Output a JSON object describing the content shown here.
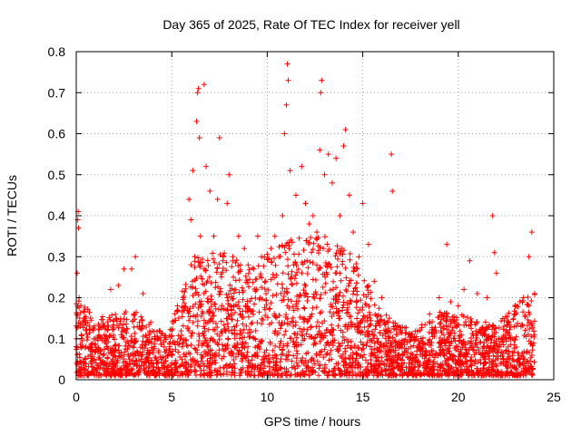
{
  "chart_data": {
    "type": "scatter",
    "title": "Day 365 of 2025, Rate Of TEC Index for receiver yell",
    "xlabel": "GPS time / hours",
    "ylabel": "ROTI / TECUs",
    "xlim": [
      0,
      25
    ],
    "ylim": [
      0,
      0.8
    ],
    "xticks": [
      "0",
      "5",
      "10",
      "15",
      "20",
      "25"
    ],
    "yticks": [
      "0",
      "0.1",
      "0.2",
      "0.3",
      "0.4",
      "0.5",
      "0.6",
      "0.7",
      "0.8"
    ],
    "grid": true,
    "marker": "plus",
    "color": "#ff0000",
    "series": [
      {
        "points": [
          [
            0.05,
            0.26
          ],
          [
            0.08,
            0.39
          ],
          [
            0.1,
            0.41
          ],
          [
            0.12,
            0.37
          ],
          [
            0.15,
            0.2
          ],
          [
            0.18,
            0.15
          ],
          [
            0.3,
            0.1
          ],
          [
            0.5,
            0.12
          ],
          [
            0.7,
            0.08
          ],
          [
            1.0,
            0.1
          ],
          [
            1.5,
            0.13
          ],
          [
            1.8,
            0.22
          ],
          [
            2.2,
            0.23
          ],
          [
            2.5,
            0.27
          ],
          [
            2.9,
            0.27
          ],
          [
            3.1,
            0.3
          ],
          [
            3.5,
            0.21
          ],
          [
            3.9,
            0.14
          ],
          [
            4.3,
            0.1
          ],
          [
            4.6,
            0.08
          ],
          [
            5.0,
            0.12
          ],
          [
            5.3,
            0.18
          ],
          [
            5.6,
            0.2
          ],
          [
            5.9,
            0.44
          ],
          [
            6.0,
            0.39
          ],
          [
            6.1,
            0.51
          ],
          [
            6.2,
            0.3
          ],
          [
            6.3,
            0.63
          ],
          [
            6.35,
            0.7
          ],
          [
            6.4,
            0.71
          ],
          [
            6.45,
            0.59
          ],
          [
            6.5,
            0.35
          ],
          [
            6.7,
            0.72
          ],
          [
            6.8,
            0.52
          ],
          [
            7.0,
            0.46
          ],
          [
            7.2,
            0.35
          ],
          [
            7.4,
            0.44
          ],
          [
            7.5,
            0.59
          ],
          [
            7.7,
            0.3
          ],
          [
            7.9,
            0.43
          ],
          [
            8.0,
            0.5
          ],
          [
            8.2,
            0.3
          ],
          [
            8.5,
            0.35
          ],
          [
            8.8,
            0.32
          ],
          [
            9.0,
            0.28
          ],
          [
            9.3,
            0.27
          ],
          [
            9.5,
            0.35
          ],
          [
            9.7,
            0.3
          ],
          [
            9.9,
            0.24
          ],
          [
            10.2,
            0.32
          ],
          [
            10.4,
            0.35
          ],
          [
            10.6,
            0.3
          ],
          [
            10.8,
            0.4
          ],
          [
            10.9,
            0.6
          ],
          [
            11.0,
            0.67
          ],
          [
            11.05,
            0.77
          ],
          [
            11.1,
            0.73
          ],
          [
            11.2,
            0.51
          ],
          [
            11.5,
            0.45
          ],
          [
            11.8,
            0.52
          ],
          [
            12.0,
            0.43
          ],
          [
            12.2,
            0.38
          ],
          [
            12.4,
            0.4
          ],
          [
            12.6,
            0.36
          ],
          [
            12.75,
            0.56
          ],
          [
            12.8,
            0.7
          ],
          [
            12.85,
            0.73
          ],
          [
            13.0,
            0.5
          ],
          [
            13.2,
            0.55
          ],
          [
            13.4,
            0.48
          ],
          [
            13.6,
            0.54
          ],
          [
            13.8,
            0.4
          ],
          [
            14.0,
            0.57
          ],
          [
            14.1,
            0.61
          ],
          [
            14.3,
            0.45
          ],
          [
            14.5,
            0.36
          ],
          [
            14.8,
            0.3
          ],
          [
            15.0,
            0.43
          ],
          [
            15.3,
            0.33
          ],
          [
            15.6,
            0.24
          ],
          [
            16.0,
            0.2
          ],
          [
            16.4,
            0.15
          ],
          [
            16.5,
            0.55
          ],
          [
            16.55,
            0.46
          ],
          [
            17.0,
            0.12
          ],
          [
            17.5,
            0.08
          ],
          [
            18.0,
            0.12
          ],
          [
            18.5,
            0.16
          ],
          [
            19.0,
            0.2
          ],
          [
            19.4,
            0.33
          ],
          [
            19.6,
            0.19
          ],
          [
            20.0,
            0.18
          ],
          [
            20.3,
            0.22
          ],
          [
            20.6,
            0.29
          ],
          [
            21.0,
            0.21
          ],
          [
            21.5,
            0.2
          ],
          [
            21.8,
            0.4
          ],
          [
            21.9,
            0.31
          ],
          [
            22.0,
            0.26
          ],
          [
            22.5,
            0.12
          ],
          [
            23.0,
            0.16
          ],
          [
            23.4,
            0.2
          ],
          [
            23.7,
            0.3
          ],
          [
            23.85,
            0.36
          ],
          [
            24.0,
            0.21
          ]
        ]
      }
    ]
  }
}
